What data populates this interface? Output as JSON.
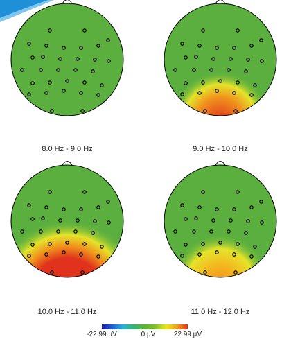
{
  "panels": [
    {
      "label": "8.0 Hz - 9.0 Hz"
    },
    {
      "label": "9.0 Hz - 10.0 Hz"
    },
    {
      "label": "10.0 Hz - 11.0 Hz"
    },
    {
      "label": "11.0 Hz - 12.0 Hz"
    }
  ],
  "colorbar": {
    "min_label": "-22.99 µV",
    "mid_label": "0 µV",
    "max_label": "22.99 µV",
    "colors": [
      "#1a1aa0",
      "#1f5fd8",
      "#27b4d6",
      "#35b56a",
      "#5cb531",
      "#7ec12a",
      "#e8e81a",
      "#f2a21a",
      "#e4321a"
    ]
  },
  "colors": {
    "head_green": "#5aaf3e",
    "yellow": "#e4e42a",
    "orange": "#f0901c",
    "red": "#e0321c",
    "accent_corner": "#1e90d8"
  }
}
